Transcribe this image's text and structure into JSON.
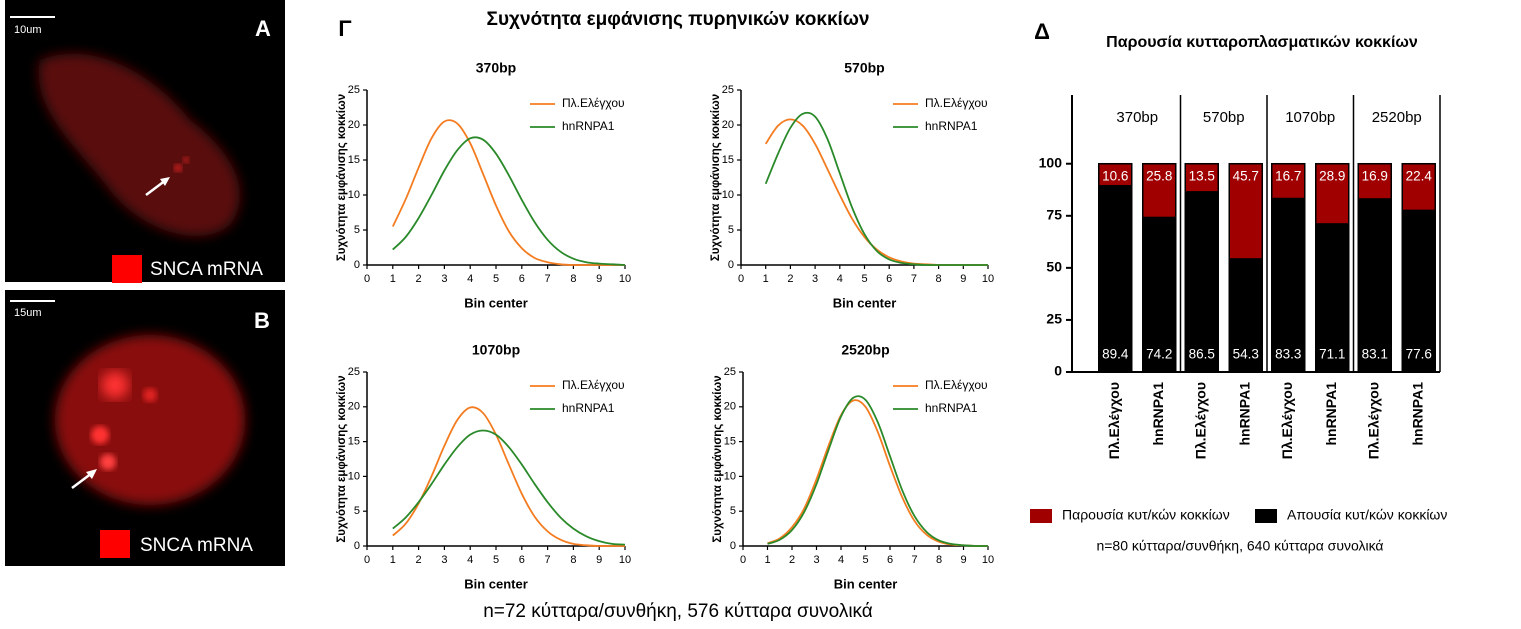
{
  "panels": {
    "a": {
      "label": "A",
      "scale": "10um",
      "legend": "SNCA mRNA"
    },
    "b": {
      "label": "B",
      "scale": "15um",
      "legend": "SNCA mRNA"
    },
    "gamma": {
      "label": "Γ",
      "title": "Συχνότητα εμφάνισης πυρηνικών κοκκίων",
      "note": "n=72 κύτταρα/συνθήκη, 576 κύτταρα συνολικά"
    },
    "delta": {
      "label": "Δ",
      "note": "n=80 κύτταρα/συνθήκη, 640 κύτταρα συνολικά"
    }
  },
  "chart_data": [
    {
      "type": "line",
      "title": "370bp",
      "x_label": "Bin center",
      "y_label": "Συχνότητα εμφάνισης κοκκίων",
      "legend": "upper right",
      "x": [
        1,
        1.5,
        2,
        2.5,
        3,
        3.5,
        4,
        4.5,
        5,
        5.5,
        6,
        6.5,
        7,
        7.5,
        8,
        8.5,
        9,
        9.5,
        10
      ],
      "series": [
        {
          "name": "Πλ.Ελέγχου",
          "color": "#f47c20",
          "values": [
            5.5,
            9.4,
            13.9,
            18.1,
            20.5,
            20.2,
            17.4,
            13.0,
            8.5,
            4.8,
            2.4,
            1.0,
            0.4,
            0.1,
            0,
            0,
            0,
            0,
            0
          ]
        },
        {
          "name": "hnRNPA1",
          "color": "#2a8a2a",
          "values": [
            2.2,
            4.0,
            6.7,
            10.0,
            13.5,
            16.4,
            18.1,
            17.9,
            15.9,
            12.8,
            9.3,
            6.1,
            3.6,
            1.9,
            0.9,
            0.4,
            0.2,
            0.1,
            0
          ]
        }
      ],
      "xlim": [
        0,
        10
      ],
      "xticks": [
        0,
        1,
        2,
        3,
        4,
        5,
        6,
        7,
        8,
        9,
        10
      ],
      "ylim": [
        0,
        25
      ],
      "yticks": [
        0,
        5,
        10,
        15,
        20,
        25
      ]
    },
    {
      "type": "line",
      "title": "570bp",
      "x_label": "Bin center",
      "y_label": "Συχνότητα εμφάνισης κοκκίων",
      "legend": "upper right",
      "x": [
        1,
        1.5,
        2,
        2.5,
        3,
        3.5,
        4,
        4.5,
        5,
        5.5,
        6,
        6.5,
        7,
        7.5,
        8,
        8.5,
        9,
        9.5,
        10
      ],
      "series": [
        {
          "name": "Πλ.Ελέγχου",
          "color": "#f47c20",
          "values": [
            17.3,
            19.9,
            20.8,
            19.9,
            17.3,
            13.7,
            10.0,
            6.6,
            4.0,
            2.2,
            1.1,
            0.5,
            0.2,
            0.1,
            0,
            0,
            0,
            0,
            0
          ]
        },
        {
          "name": "hnRNPA1",
          "color": "#2a8a2a",
          "values": [
            11.6,
            15.9,
            19.6,
            21.6,
            21.2,
            18.0,
            13.1,
            8.2,
            4.4,
            2.0,
            0.8,
            0.3,
            0.1,
            0,
            0,
            0,
            0,
            0,
            0
          ]
        }
      ],
      "xlim": [
        0,
        10
      ],
      "xticks": [
        0,
        1,
        2,
        3,
        4,
        5,
        6,
        7,
        8,
        9,
        10
      ],
      "ylim": [
        0,
        25
      ],
      "yticks": [
        0,
        5,
        10,
        15,
        20,
        25
      ]
    },
    {
      "type": "line",
      "title": "1070bp",
      "x_label": "Bin center",
      "y_label": "Συχνότητα εμφάνισης κοκκίων",
      "legend": "upper right",
      "x": [
        1,
        1.5,
        2,
        2.5,
        3,
        3.5,
        4,
        4.5,
        5,
        5.5,
        6,
        6.5,
        7,
        7.5,
        8,
        8.5,
        9,
        9.5,
        10
      ],
      "series": [
        {
          "name": "Πλ.Ελέγχου",
          "color": "#f47c20",
          "values": [
            1.5,
            3.2,
            6.1,
            10.0,
            14.4,
            18.1,
            19.9,
            19.1,
            16.0,
            11.7,
            7.5,
            4.2,
            2.1,
            0.9,
            0.3,
            0.1,
            0,
            0,
            0
          ]
        },
        {
          "name": "hnRNPA1",
          "color": "#2a8a2a",
          "values": [
            2.5,
            4.1,
            6.3,
            8.9,
            11.7,
            14.2,
            16.0,
            16.6,
            16.0,
            14.2,
            11.7,
            8.9,
            6.3,
            4.1,
            2.5,
            1.4,
            0.7,
            0.3,
            0.2
          ]
        }
      ],
      "xlim": [
        0,
        10
      ],
      "xticks": [
        0,
        1,
        2,
        3,
        4,
        5,
        6,
        7,
        8,
        9,
        10
      ],
      "ylim": [
        0,
        25
      ],
      "yticks": [
        0,
        5,
        10,
        15,
        20,
        25
      ]
    },
    {
      "type": "line",
      "title": "2520bp",
      "x_label": "Bin center",
      "y_label": "Συχνότητα εμφάνισης κοκκίων",
      "legend": "upper right",
      "x": [
        1,
        1.5,
        2,
        2.5,
        3,
        3.5,
        4,
        4.5,
        5,
        5.5,
        6,
        6.5,
        7,
        7.5,
        8,
        8.5,
        9,
        9.5,
        10
      ],
      "series": [
        {
          "name": "Πλ.Ελέγχου",
          "color": "#f47c20",
          "values": [
            0.4,
            1.1,
            2.7,
            5.4,
            9.6,
            14.5,
            18.8,
            20.9,
            20.0,
            16.4,
            11.5,
            7.0,
            3.6,
            1.6,
            0.6,
            0.2,
            0.1,
            0,
            0
          ]
        },
        {
          "name": "hnRNPA1",
          "color": "#2a8a2a",
          "values": [
            0.3,
            0.9,
            2.3,
            4.9,
            8.9,
            13.9,
            18.6,
            21.3,
            21.0,
            17.8,
            12.9,
            8.0,
            4.3,
            2.0,
            0.8,
            0.3,
            0.1,
            0,
            0
          ]
        }
      ],
      "xlim": [
        0,
        10
      ],
      "xticks": [
        0,
        1,
        2,
        3,
        4,
        5,
        6,
        7,
        8,
        9,
        10
      ],
      "ylim": [
        0,
        25
      ],
      "yticks": [
        0,
        5,
        10,
        15,
        20,
        25
      ]
    },
    {
      "type": "stacked_bar",
      "title": "Παρουσία κυτταροπλασματικών κοκκίων",
      "groups": [
        "370bp",
        "570bp",
        "1070bp",
        "2520bp"
      ],
      "categories": [
        "Πλ.Ελέγχου",
        "hnRNPA1",
        "Πλ.Ελέγχου",
        "hnRNPA1",
        "Πλ.Ελέγχου",
        "hnRNPA1",
        "Πλ.Ελέγχου",
        "hnRNPA1"
      ],
      "series": [
        {
          "name": "Παρουσία κυτ/κών κοκκίων",
          "color": "#a00000",
          "values": [
            10.6,
            25.8,
            13.5,
            45.7,
            16.7,
            28.9,
            16.9,
            22.4
          ]
        },
        {
          "name": "Απουσία κυτ/κών κοκκίων",
          "color": "#000000",
          "values": [
            89.4,
            74.2,
            86.5,
            54.3,
            83.3,
            71.1,
            83.1,
            77.6
          ]
        }
      ],
      "ylim": [
        0,
        133
      ],
      "yticks": [
        0,
        25,
        50,
        75,
        100
      ],
      "legend": "bottom"
    }
  ]
}
